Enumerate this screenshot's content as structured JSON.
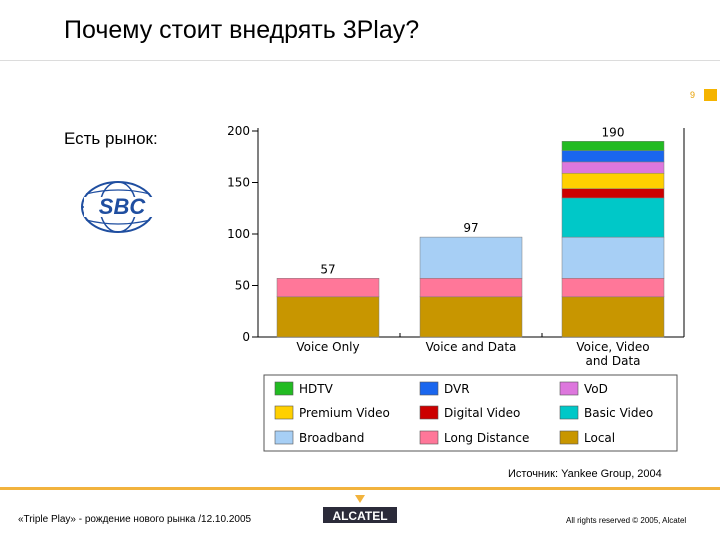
{
  "slide": {
    "title": "Почему стоит внедрять 3Play?",
    "page_number": "9",
    "subtitle": "Есть рынок:",
    "logo_text": "SBC",
    "source": "Источник: Yankee Group, 2004",
    "footer_left": "«Triple Play» - рождение нового рынка  /12.10.2005",
    "footer_right": "All rights reserved © 2005, Alcatel",
    "brand": "ALCATEL"
  },
  "colors": {
    "accent": "#f2b33d",
    "brand_dark": "#2b2b3a"
  },
  "chart_data": {
    "type": "bar",
    "stacked": true,
    "categories": [
      "Voice Only",
      "Voice and Data",
      "Voice, Video and Data"
    ],
    "totals": [
      57,
      97,
      190
    ],
    "ylim": [
      0,
      200
    ],
    "yticks": [
      0,
      50,
      100,
      150,
      200
    ],
    "legend_placement": "bottom",
    "series": [
      {
        "name": "Local",
        "color": "#c89600",
        "values": [
          39,
          39,
          39
        ]
      },
      {
        "name": "Long Distance",
        "color": "#ff7799",
        "values": [
          18,
          18,
          18
        ]
      },
      {
        "name": "Broadband",
        "color": "#a7cff5",
        "values": [
          0,
          40,
          40
        ]
      },
      {
        "name": "Basic Video",
        "color": "#00c8c8",
        "values": [
          0,
          0,
          38
        ]
      },
      {
        "name": "Digital Video",
        "color": "#cc0000",
        "values": [
          0,
          0,
          9
        ]
      },
      {
        "name": "Premium Video",
        "color": "#ffd000",
        "values": [
          0,
          0,
          15
        ]
      },
      {
        "name": "VoD",
        "color": "#dd77dd",
        "values": [
          0,
          0,
          11
        ]
      },
      {
        "name": "DVR",
        "color": "#1a66ee",
        "values": [
          0,
          0,
          11
        ]
      },
      {
        "name": "HDTV",
        "color": "#22bb22",
        "values": [
          0,
          0,
          9
        ]
      }
    ],
    "legend_order": [
      "HDTV",
      "DVR",
      "VoD",
      "Premium Video",
      "Digital Video",
      "Basic Video",
      "Broadband",
      "Long Distance",
      "Local"
    ]
  }
}
